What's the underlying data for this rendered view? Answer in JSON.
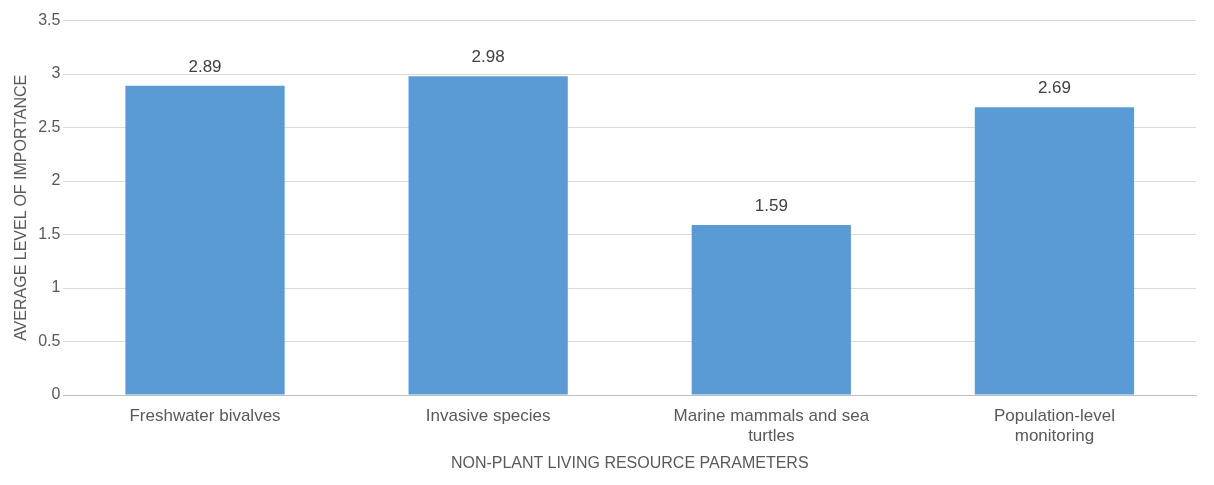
{
  "chart_data": {
    "type": "bar",
    "categories": [
      "Freshwater bivalves",
      "Invasive species",
      "Marine mammals and sea turtles",
      "Population-level monitoring"
    ],
    "values": [
      2.89,
      2.98,
      1.59,
      2.69
    ],
    "color": "#5b9bd5",
    "xlabel": "NON-PLANT LIVING RESOURCE PARAMETERS",
    "ylabel": "AVERAGE LEVEL OF IMPORTANCE",
    "ylim": [
      0,
      3.5
    ],
    "yticks": [
      0,
      0.5,
      1,
      1.5,
      2,
      2.5,
      3,
      3.5
    ],
    "grid": "y",
    "legend": false,
    "data_labels": true
  }
}
